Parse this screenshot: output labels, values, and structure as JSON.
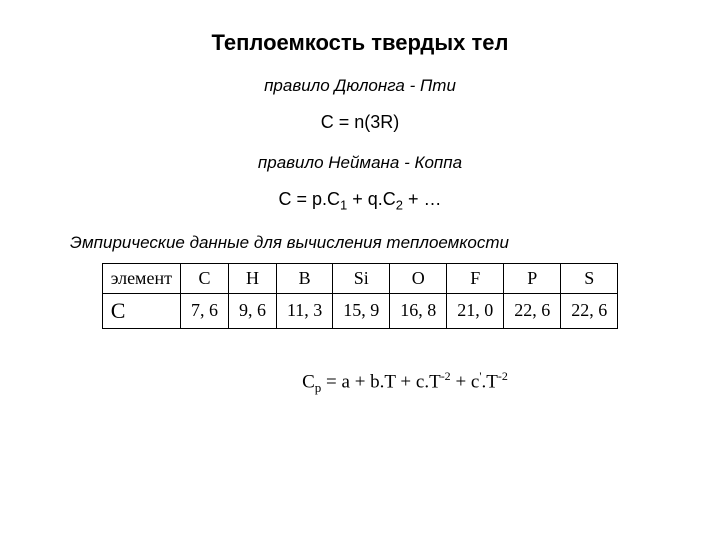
{
  "title": "Теплоемкость твердых тел",
  "rule1": "правило Дюлонга - Пти",
  "formula1": "C = n(3R)",
  "rule2": "правило Неймана - Коппа",
  "formula2_pre": "C = p.C",
  "formula2_s1": "1",
  "formula2_mid": " + q.C",
  "formula2_s2": "2",
  "formula2_post": " + …",
  "subtitle": "Эмпирические данные для вычисления теплоемкости",
  "table": {
    "row1_label": "элемент",
    "row2_label": "С",
    "elements": [
      "C",
      "H",
      "B",
      "Si",
      "O",
      "F",
      "P",
      "S"
    ],
    "values": [
      "7, 6",
      "9, 6",
      "11, 3",
      "15, 9",
      "16, 8",
      "21, 0",
      "22, 6",
      "22, 6"
    ]
  },
  "poly": {
    "lhs": "C",
    "lhs_sub": "p",
    "eq": " = a + b.T + c.T",
    "sup1": "-2",
    "plus": " + c",
    "prime": "'",
    "dotT": ".T",
    "sup2": "-2"
  }
}
